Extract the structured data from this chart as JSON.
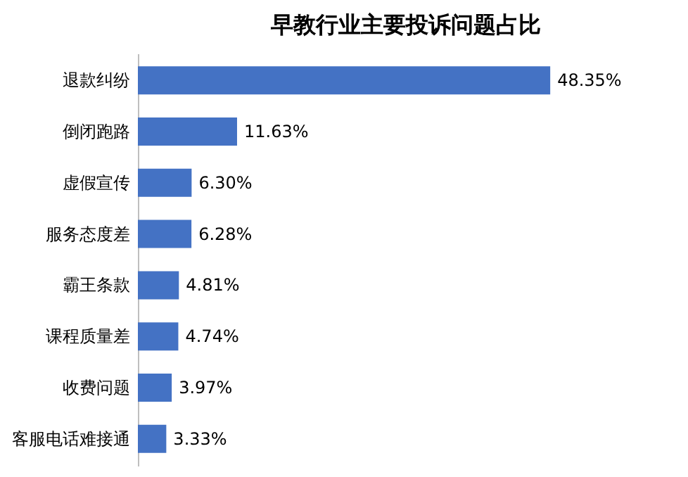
{
  "chart_data": {
    "type": "bar",
    "orientation": "horizontal",
    "title": "早教行业主要投诉问题占比",
    "categories": [
      "退款纠纷",
      "倒闭跑路",
      "虚假宣传",
      "服务态度差",
      "霸王条款",
      "课程质量差",
      "收费问题",
      "客服电话难接通"
    ],
    "values": [
      48.35,
      11.63,
      6.3,
      6.28,
      4.81,
      4.74,
      3.97,
      3.33
    ],
    "value_labels": [
      "48.35%",
      "11.63%",
      "6.30%",
      "6.28%",
      "4.81%",
      "4.74%",
      "3.97%",
      "3.33%"
    ],
    "color": "#4472c4"
  }
}
